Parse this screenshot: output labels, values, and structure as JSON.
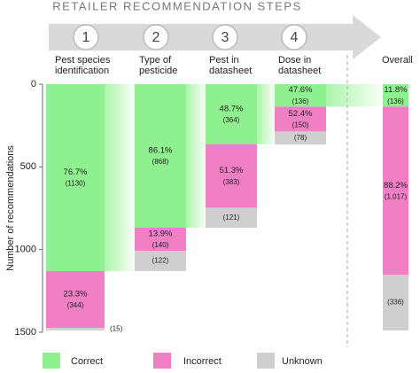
{
  "chart_data": {
    "type": "stacked-bar",
    "steps_title": "RETAILER RECOMMENDATION STEPS",
    "steps": [
      "1",
      "2",
      "3",
      "4"
    ],
    "categories": [
      "Pest species identification",
      "Type of pesticide",
      "Pest in datasheet",
      "Dose in datasheet",
      "Overall"
    ],
    "y_label": "Number of recommendations",
    "ylim": [
      0,
      1500
    ],
    "yticks": [
      0,
      500,
      1000,
      1500
    ],
    "inverted": true,
    "series": [
      {
        "name": "Correct",
        "color": "#8ff08f",
        "values": [
          1130,
          868,
          364,
          136,
          136
        ],
        "value_labels": [
          "(1130)",
          "(868)",
          "(364)",
          "(136)",
          "(136)"
        ],
        "percents": [
          76.7,
          86.1,
          48.7,
          47.6,
          11.8
        ],
        "percent_labels": [
          "76.7%",
          "86.1%",
          "48.7%",
          "47.6%",
          "11.8%"
        ]
      },
      {
        "name": "Incorrect",
        "color": "#f07fc4",
        "values": [
          344,
          140,
          383,
          150,
          1017
        ],
        "value_labels": [
          "(344)",
          "(140)",
          "(383)",
          "(150)",
          "(1,017)"
        ],
        "percents": [
          23.3,
          13.9,
          51.3,
          52.4,
          88.2
        ],
        "percent_labels": [
          "23.3%",
          "13.9%",
          "51.3%",
          "52.4%",
          "88.2%"
        ]
      },
      {
        "name": "Unknown",
        "color": "#cfcfcf",
        "values": [
          15,
          122,
          121,
          78,
          336
        ],
        "value_labels": [
          "(15)",
          "(122)",
          "(121)",
          "(78)",
          "(336)"
        ]
      }
    ]
  }
}
